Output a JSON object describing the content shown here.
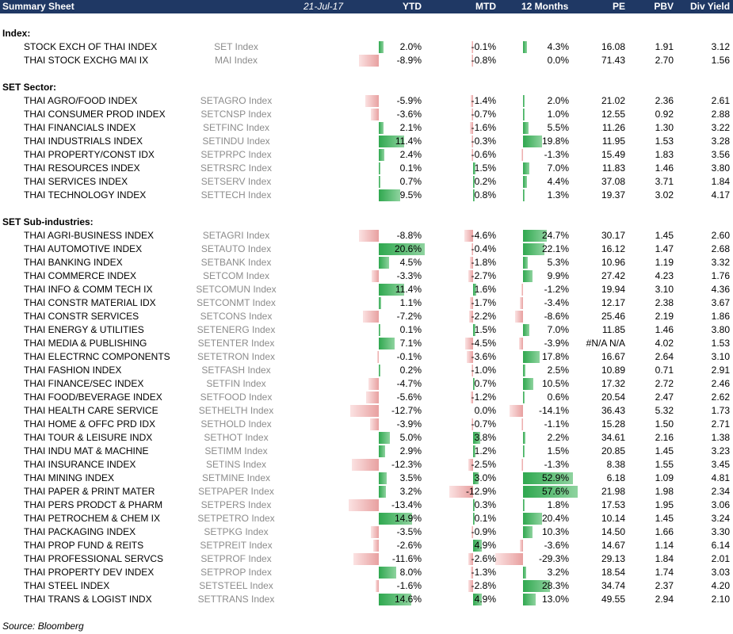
{
  "header": {
    "title": "Summary Sheet",
    "date": "21-Jul-17",
    "columns": [
      "YTD",
      "MTD",
      "12 Months",
      "PE",
      "PBV",
      "Div Yield"
    ]
  },
  "sections": [
    {
      "title": "Index:",
      "rows": [
        {
          "name": "STOCK EXCH OF THAI INDEX",
          "ticker": "SET Index",
          "ytd": "2.0%",
          "mtd": "-0.1%",
          "m12": "4.3%",
          "pe": "16.08",
          "pbv": "1.91",
          "div": "3.12"
        },
        {
          "name": "THAI STOCK EXCHG MAI IX",
          "ticker": "MAI Index",
          "ytd": "-8.9%",
          "mtd": "-0.8%",
          "m12": "0.0%",
          "pe": "71.43",
          "pbv": "2.70",
          "div": "1.56"
        }
      ]
    },
    {
      "title": "SET Sector:",
      "rows": [
        {
          "name": "THAI AGRO/FOOD INDEX",
          "ticker": "SETAGRO Index",
          "ytd": "-5.9%",
          "mtd": "-1.4%",
          "m12": "2.0%",
          "pe": "21.02",
          "pbv": "2.36",
          "div": "2.61"
        },
        {
          "name": "THAI CONSUMER PROD INDEX",
          "ticker": "SETCNSP Index",
          "ytd": "-3.6%",
          "mtd": "-0.7%",
          "m12": "1.0%",
          "pe": "12.55",
          "pbv": "0.92",
          "div": "2.88"
        },
        {
          "name": "THAI FINANCIALS INDEX",
          "ticker": "SETFINC Index",
          "ytd": "2.1%",
          "mtd": "-1.6%",
          "m12": "5.5%",
          "pe": "11.26",
          "pbv": "1.30",
          "div": "3.22"
        },
        {
          "name": "THAI INDUSTRIALS INDEX",
          "ticker": "SETINDU Index",
          "ytd": "11.4%",
          "mtd": "-0.3%",
          "m12": "19.8%",
          "pe": "11.95",
          "pbv": "1.53",
          "div": "3.28"
        },
        {
          "name": "THAI PROPERTY/CONST IDX",
          "ticker": "SETPRPC Index",
          "ytd": "2.4%",
          "mtd": "-0.6%",
          "m12": "-1.3%",
          "pe": "15.49",
          "pbv": "1.83",
          "div": "3.56"
        },
        {
          "name": "THAI RESOURCES INDEX",
          "ticker": "SETRSRC Index",
          "ytd": "0.1%",
          "mtd": "1.5%",
          "m12": "7.0%",
          "pe": "11.83",
          "pbv": "1.46",
          "div": "3.80"
        },
        {
          "name": "THAI SERVICES INDEX",
          "ticker": "SETSERV Index",
          "ytd": "0.7%",
          "mtd": "0.2%",
          "m12": "4.4%",
          "pe": "37.08",
          "pbv": "3.71",
          "div": "1.84"
        },
        {
          "name": "THAI TECHNOLOGY INDEX",
          "ticker": "SETTECH Index",
          "ytd": "9.5%",
          "mtd": "0.8%",
          "m12": "1.3%",
          "pe": "19.37",
          "pbv": "3.02",
          "div": "4.17"
        }
      ]
    },
    {
      "title": "SET Sub-industries:",
      "rows": [
        {
          "name": "THAI AGRI-BUSINESS INDEX",
          "ticker": "SETAGRI Index",
          "ytd": "-8.8%",
          "mtd": "-4.6%",
          "m12": "24.7%",
          "pe": "30.17",
          "pbv": "1.45",
          "div": "2.60"
        },
        {
          "name": "THAI AUTOMOTIVE INDEX",
          "ticker": "SETAUTO Index",
          "ytd": "20.6%",
          "mtd": "-0.4%",
          "m12": "22.1%",
          "pe": "16.12",
          "pbv": "1.47",
          "div": "2.68"
        },
        {
          "name": "THAI BANKING INDEX",
          "ticker": "SETBANK Index",
          "ytd": "4.5%",
          "mtd": "-1.8%",
          "m12": "5.3%",
          "pe": "10.96",
          "pbv": "1.19",
          "div": "3.32"
        },
        {
          "name": "THAI COMMERCE INDEX",
          "ticker": "SETCOM Index",
          "ytd": "-3.3%",
          "mtd": "-2.7%",
          "m12": "9.9%",
          "pe": "27.42",
          "pbv": "4.23",
          "div": "1.76"
        },
        {
          "name": "THAI INFO & COMM TECH IX",
          "ticker": "SETCOMUN Index",
          "ytd": "11.4%",
          "mtd": "1.6%",
          "m12": "-1.2%",
          "pe": "19.94",
          "pbv": "3.10",
          "div": "4.36"
        },
        {
          "name": "THAI CONSTR MATERIAL IDX",
          "ticker": "SETCONMT Index",
          "ytd": "1.1%",
          "mtd": "-1.7%",
          "m12": "-3.4%",
          "pe": "12.17",
          "pbv": "2.38",
          "div": "3.67"
        },
        {
          "name": "THAI CONSTR SERVICES",
          "ticker": "SETCONS Index",
          "ytd": "-7.2%",
          "mtd": "-2.2%",
          "m12": "-8.6%",
          "pe": "25.46",
          "pbv": "2.19",
          "div": "1.86"
        },
        {
          "name": "THAI ENERGY & UTILITIES",
          "ticker": "SETENERG Index",
          "ytd": "0.1%",
          "mtd": "1.5%",
          "m12": "7.0%",
          "pe": "11.85",
          "pbv": "1.46",
          "div": "3.80"
        },
        {
          "name": "THAI MEDIA & PUBLISHING",
          "ticker": "SETENTER Index",
          "ytd": "7.1%",
          "mtd": "-4.5%",
          "m12": "-3.9%",
          "pe": "#N/A N/A",
          "pbv": "4.02",
          "div": "1.53"
        },
        {
          "name": "THAI ELECTRNC COMPONENTS",
          "ticker": "SETETRON Index",
          "ytd": "-0.1%",
          "mtd": "-3.6%",
          "m12": "17.8%",
          "pe": "16.67",
          "pbv": "2.64",
          "div": "3.10"
        },
        {
          "name": "THAI FASHION INDEX",
          "ticker": "SETFASH Index",
          "ytd": "0.2%",
          "mtd": "-1.0%",
          "m12": "2.5%",
          "pe": "10.89",
          "pbv": "0.71",
          "div": "2.91"
        },
        {
          "name": "THAI FINANCE/SEC INDEX",
          "ticker": "SETFIN Index",
          "ytd": "-4.7%",
          "mtd": "0.7%",
          "m12": "10.5%",
          "pe": "17.32",
          "pbv": "2.72",
          "div": "2.46"
        },
        {
          "name": "THAI FOOD/BEVERAGE INDEX",
          "ticker": "SETFOOD Index",
          "ytd": "-5.6%",
          "mtd": "-1.2%",
          "m12": "0.6%",
          "pe": "20.54",
          "pbv": "2.47",
          "div": "2.62"
        },
        {
          "name": "THAI HEALTH CARE SERVICE",
          "ticker": "SETHELTH Index",
          "ytd": "-12.7%",
          "mtd": "0.0%",
          "m12": "-14.1%",
          "pe": "36.43",
          "pbv": "5.32",
          "div": "1.73"
        },
        {
          "name": "THAI HOME & OFFC PRD IDX",
          "ticker": "SETHOLD Index",
          "ytd": "-3.9%",
          "mtd": "-0.7%",
          "m12": "-1.1%",
          "pe": "15.28",
          "pbv": "1.50",
          "div": "2.71"
        },
        {
          "name": "THAI TOUR & LEISURE INDX",
          "ticker": "SETHOT Index",
          "ytd": "5.0%",
          "mtd": "3.8%",
          "m12": "2.2%",
          "pe": "34.61",
          "pbv": "2.16",
          "div": "1.38"
        },
        {
          "name": "THAI INDU MAT & MACHINE",
          "ticker": "SETIMM Index",
          "ytd": "2.9%",
          "mtd": "1.2%",
          "m12": "1.5%",
          "pe": "20.85",
          "pbv": "1.45",
          "div": "3.23"
        },
        {
          "name": "THAI INSURANCE INDEX",
          "ticker": "SETINS Index",
          "ytd": "-12.3%",
          "mtd": "-2.5%",
          "m12": "-1.3%",
          "pe": "8.38",
          "pbv": "1.55",
          "div": "3.45"
        },
        {
          "name": "THAI MINING INDEX",
          "ticker": "SETMINE Index",
          "ytd": "3.5%",
          "mtd": "3.0%",
          "m12": "52.9%",
          "pe": "6.18",
          "pbv": "1.09",
          "div": "4.81"
        },
        {
          "name": "THAI PAPER & PRINT MATER",
          "ticker": "SETPAPER Index",
          "ytd": "3.2%",
          "mtd": "-12.9%",
          "m12": "57.6%",
          "pe": "21.98",
          "pbv": "1.98",
          "div": "2.34"
        },
        {
          "name": "THAI PERS PRODCT & PHARM",
          "ticker": "SETPERS Index",
          "ytd": "-13.4%",
          "mtd": "0.3%",
          "m12": "1.8%",
          "pe": "17.53",
          "pbv": "1.95",
          "div": "3.06"
        },
        {
          "name": "THAI PETROCHEM & CHEM IX",
          "ticker": "SETPETRO Index",
          "ytd": "14.9%",
          "mtd": "0.1%",
          "m12": "20.4%",
          "pe": "10.14",
          "pbv": "1.45",
          "div": "3.24"
        },
        {
          "name": "THAI PACKAGING INDEX",
          "ticker": "SETPKG Index",
          "ytd": "-3.5%",
          "mtd": "-0.9%",
          "m12": "10.3%",
          "pe": "14.50",
          "pbv": "1.66",
          "div": "3.30"
        },
        {
          "name": "THAI PROP FUND & REITS",
          "ticker": "SETPREIT Index",
          "ytd": "-2.6%",
          "mtd": "4.9%",
          "m12": "-3.6%",
          "pe": "14.67",
          "pbv": "1.14",
          "div": "6.14"
        },
        {
          "name": "THAI PROFESSIONAL SERVCS",
          "ticker": "SETPROF Index",
          "ytd": "-11.6%",
          "mtd": "-2.6%",
          "m12": "-29.3%",
          "pe": "29.13",
          "pbv": "1.84",
          "div": "2.01"
        },
        {
          "name": "THAI PROPERTY DEV INDEX",
          "ticker": "SETPROP Index",
          "ytd": "8.0%",
          "mtd": "-1.3%",
          "m12": "3.2%",
          "pe": "18.54",
          "pbv": "1.74",
          "div": "3.03"
        },
        {
          "name": "THAI STEEL INDEX",
          "ticker": "SETSTEEL Index",
          "ytd": "-1.6%",
          "mtd": "-2.8%",
          "m12": "28.3%",
          "pe": "34.74",
          "pbv": "2.37",
          "div": "4.20"
        },
        {
          "name": "THAI TRANS & LOGIST INDX",
          "ticker": "SETTRANS Index",
          "ytd": "14.6%",
          "mtd": "4.9%",
          "m12": "13.0%",
          "pe": "49.55",
          "pbv": "2.94",
          "div": "2.10"
        }
      ]
    }
  ],
  "source": "Source: Bloomberg",
  "colors": {
    "header_bg": "#1f3864",
    "positive_bar": "#2fa84f",
    "negative_bar": "#e8a0a0",
    "ticker_text": "#8c8c8c"
  }
}
